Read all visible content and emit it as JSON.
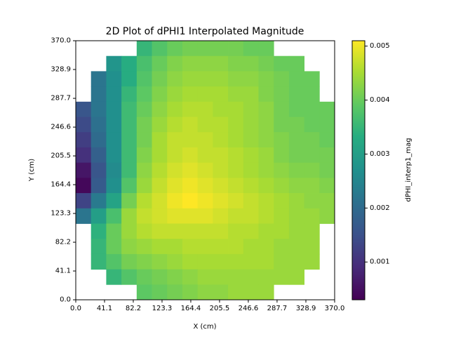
{
  "chart_data": {
    "type": "heatmap",
    "title": "2D Plot of dPHI1 Interpolated Magnitude",
    "xlabel": "X (cm)",
    "ylabel": "Y (cm)",
    "x_ticks": [
      "0.0",
      "41.1",
      "82.2",
      "123.3",
      "164.4",
      "205.5",
      "246.6",
      "287.7",
      "328.9",
      "370.0"
    ],
    "y_ticks": [
      "0.0",
      "41.1",
      "82.2",
      "123.3",
      "164.4",
      "205.5",
      "246.6",
      "287.7",
      "328.9",
      "370.0"
    ],
    "xlim": [
      0,
      370
    ],
    "ylim": [
      0,
      370
    ],
    "grid_size": 17,
    "colorbar": {
      "label": "dPHI_interp1_mag",
      "colormap": "viridis",
      "range": [
        0.0003,
        0.0051
      ],
      "ticks": [
        "0.001",
        "0.002",
        "0.003",
        "0.004",
        "0.005"
      ],
      "tick_values": [
        0.001,
        0.002,
        0.003,
        0.004,
        0.005
      ]
    },
    "rows_top_to_bottom": [
      [
        null,
        null,
        null,
        null,
        0.0035,
        0.0038,
        0.004,
        0.0041,
        0.0041,
        0.0041,
        0.0041,
        0.004,
        0.004,
        null,
        null,
        null,
        null
      ],
      [
        null,
        null,
        0.0028,
        0.0033,
        0.0037,
        0.004,
        0.0042,
        0.0043,
        0.0043,
        0.0043,
        0.0042,
        0.0042,
        0.0041,
        0.004,
        0.004,
        null,
        null
      ],
      [
        null,
        0.0022,
        0.0027,
        0.0033,
        0.0038,
        0.0041,
        0.0043,
        0.0044,
        0.0044,
        0.0044,
        0.0043,
        0.0043,
        0.0042,
        0.0041,
        0.004,
        0.004,
        null
      ],
      [
        null,
        0.0022,
        0.0027,
        0.0035,
        0.0039,
        0.0042,
        0.0044,
        0.0045,
        0.0045,
        0.0045,
        0.0044,
        0.0044,
        0.0042,
        0.0041,
        0.004,
        0.004,
        null
      ],
      [
        0.0016,
        0.0022,
        0.0027,
        0.0036,
        0.004,
        0.0043,
        0.0045,
        0.0046,
        0.0046,
        0.0045,
        0.0045,
        0.0044,
        0.0043,
        0.0041,
        0.004,
        0.004,
        0.004
      ],
      [
        0.0014,
        0.0021,
        0.0027,
        0.0036,
        0.0041,
        0.0044,
        0.0046,
        0.0047,
        0.0046,
        0.0046,
        0.0045,
        0.0044,
        0.0043,
        0.0041,
        0.0041,
        0.004,
        0.004
      ],
      [
        0.0012,
        0.002,
        0.0027,
        0.0036,
        0.0041,
        0.0045,
        0.0047,
        0.0047,
        0.0047,
        0.0046,
        0.0045,
        0.0044,
        0.0043,
        0.0042,
        0.0041,
        0.0041,
        0.004
      ],
      [
        0.001,
        0.0018,
        0.0027,
        0.0036,
        0.0042,
        0.0045,
        0.0047,
        0.0048,
        0.0047,
        0.0047,
        0.0046,
        0.0045,
        0.0044,
        0.0042,
        0.0041,
        0.0041,
        0.0041
      ],
      [
        0.0006,
        0.0016,
        0.0026,
        0.0036,
        0.0043,
        0.0046,
        0.0048,
        0.0049,
        0.0048,
        0.0047,
        0.0046,
        0.0045,
        0.0044,
        0.0043,
        0.0042,
        0.0042,
        0.0041
      ],
      [
        0.0004,
        0.0017,
        0.0027,
        0.0038,
        0.0044,
        0.0047,
        0.0049,
        0.005,
        0.0049,
        0.0048,
        0.0047,
        0.0046,
        0.0045,
        0.0044,
        0.0043,
        0.0043,
        0.0042
      ],
      [
        0.0013,
        0.0023,
        0.0031,
        0.0041,
        0.0046,
        0.0048,
        0.005,
        0.0051,
        0.005,
        0.0049,
        0.0048,
        0.0047,
        0.0046,
        0.0045,
        0.0044,
        0.0043,
        0.0043
      ],
      [
        0.0022,
        0.003,
        0.0037,
        0.0044,
        0.0047,
        0.0048,
        0.0049,
        0.0049,
        0.0049,
        0.0048,
        0.0047,
        0.0047,
        0.0046,
        0.0045,
        0.0044,
        0.0044,
        0.0043
      ],
      [
        null,
        0.0034,
        0.004,
        0.0044,
        0.0046,
        0.0047,
        0.0047,
        0.0047,
        0.0047,
        0.0047,
        0.0046,
        0.0046,
        0.0045,
        0.0045,
        0.0044,
        0.0044,
        null
      ],
      [
        null,
        0.0035,
        0.004,
        0.0043,
        0.0044,
        0.0045,
        0.0045,
        0.0046,
        0.0046,
        0.0046,
        0.0046,
        0.0045,
        0.0045,
        0.0044,
        0.0044,
        0.0044,
        null
      ],
      [
        null,
        0.0035,
        0.0038,
        0.0041,
        0.0042,
        0.0043,
        0.0044,
        0.0045,
        0.0045,
        0.0045,
        0.0045,
        0.0045,
        0.0045,
        0.0044,
        0.0044,
        0.0044,
        null
      ],
      [
        null,
        null,
        0.0035,
        0.0038,
        0.004,
        0.0041,
        0.0042,
        0.0043,
        0.0044,
        0.0044,
        0.0044,
        0.0044,
        0.0044,
        0.0044,
        0.0044,
        null,
        null
      ],
      [
        null,
        null,
        null,
        null,
        0.0039,
        0.004,
        0.0041,
        0.0042,
        0.0043,
        0.0043,
        0.0044,
        0.0044,
        0.0044,
        null,
        null,
        null,
        null
      ]
    ]
  }
}
